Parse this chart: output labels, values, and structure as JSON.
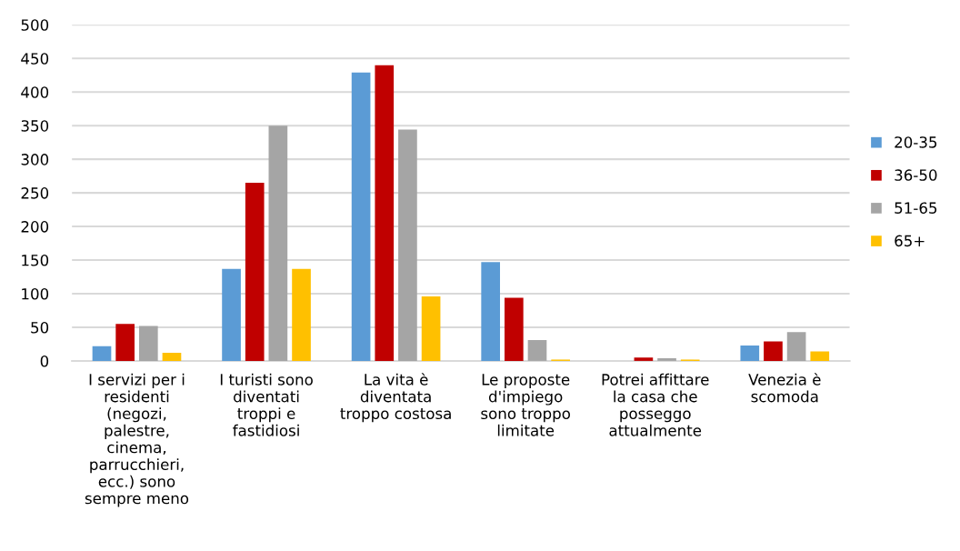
{
  "chart_data": {
    "type": "bar",
    "categories": [
      "I servizi per i\nresidenti\n(negozi,\npalestre,\ncinema,\nparrucchieri,\necc.) sono\nsempre meno",
      "I turisti sono\ndiventati\ntroppi e\nfastidiosi",
      "La vita è\ndiventata\ntroppo costosa",
      "Le proposte\nd'impiego\nsono troppo\nlimitate",
      "Potrei affittare\nla casa che\nposseggo\nattualmente",
      "Venezia è\nscomoda"
    ],
    "series": [
      {
        "name": "20-35",
        "color": "#5b9bd5",
        "values": [
          22,
          137,
          429,
          147,
          0,
          23
        ]
      },
      {
        "name": "36-50",
        "color": "#c00000",
        "values": [
          55,
          265,
          440,
          94,
          5,
          29
        ]
      },
      {
        "name": "51-65",
        "color": "#a5a5a5",
        "values": [
          52,
          350,
          344,
          31,
          4,
          43
        ]
      },
      {
        "name": "65+",
        "color": "#ffc000",
        "values": [
          12,
          137,
          96,
          2,
          2,
          14
        ]
      }
    ],
    "ylim": [
      0,
      500
    ],
    "yticks": [
      0,
      50,
      100,
      150,
      200,
      250,
      300,
      350,
      400,
      450,
      500
    ],
    "grid": "y",
    "legend": "right"
  }
}
